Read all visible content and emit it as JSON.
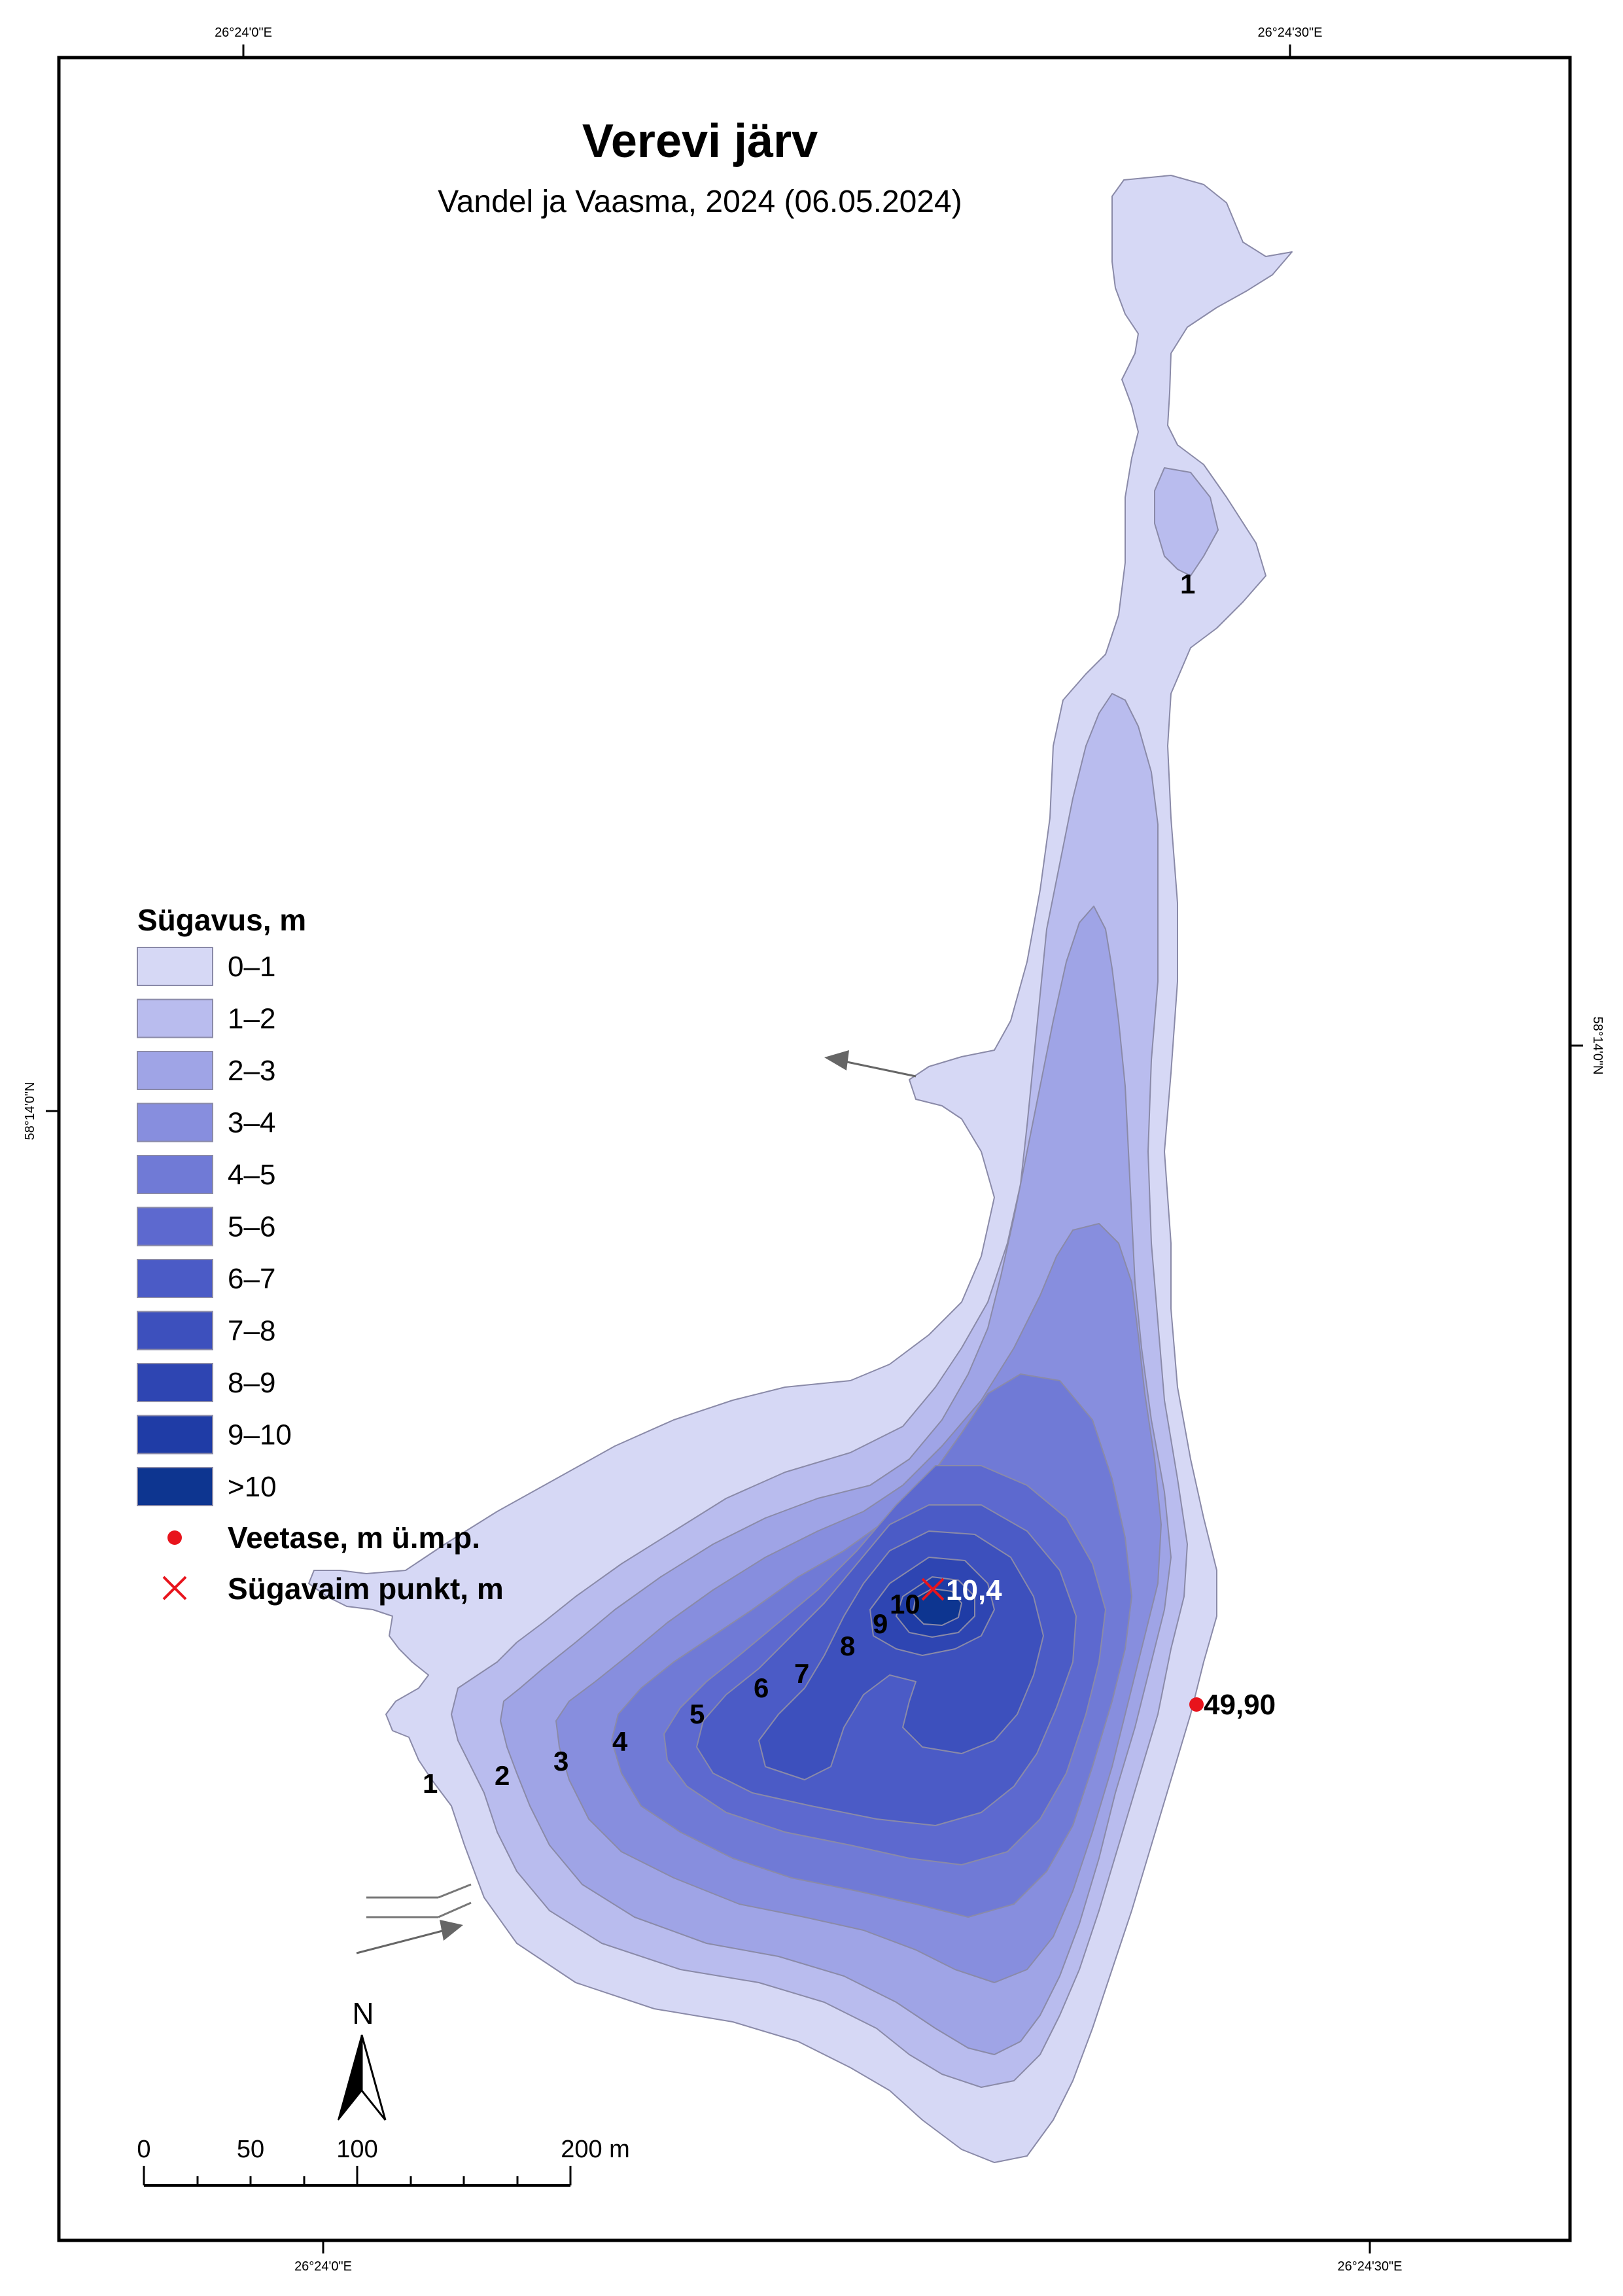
{
  "title": "Verevi järv",
  "subtitle": "Vandel ja Vaasma, 2024 (06.05.2024)",
  "coordinates": {
    "top_left": "26°24'0\"E",
    "top_right": "26°24'30\"E",
    "bottom_left": "26°24'0\"E",
    "bottom_right": "26°24'30\"E",
    "left": "58°14'0\"N",
    "right": "58°14'0\"N"
  },
  "legend": {
    "title": "Sügavus, m",
    "classes": [
      {
        "label": "0–1",
        "color": "#d6d8f5"
      },
      {
        "label": "1–2",
        "color": "#b9bcee"
      },
      {
        "label": "2–3",
        "color": "#9fa4e6"
      },
      {
        "label": "3–4",
        "color": "#878ede"
      },
      {
        "label": "4–5",
        "color": "#707ad6"
      },
      {
        "label": "5–6",
        "color": "#5d69cf"
      },
      {
        "label": "6–7",
        "color": "#4b5bc6"
      },
      {
        "label": "7–8",
        "color": "#3d50bd"
      },
      {
        "label": "8–9",
        "color": "#2e45b2"
      },
      {
        "label": "9–10",
        "color": "#1f3ca6"
      },
      {
        "label": ">10",
        "color": "#0d3590"
      }
    ],
    "symbols": [
      {
        "label": "Veetase, m ü.m.p.",
        "icon": "red-dot-icon",
        "color": "#e8141c"
      },
      {
        "label": "Sügavaim punkt, m",
        "icon": "red-cross-icon",
        "color": "#e8141c"
      }
    ]
  },
  "contour_labels": [
    "1",
    "1",
    "2",
    "3",
    "4",
    "5",
    "6",
    "7",
    "8",
    "9",
    "10"
  ],
  "deepest_point": "10,4",
  "water_level": "49,90",
  "north": "N",
  "scale_bar": {
    "labels": [
      "0",
      "50",
      "100",
      "200 m"
    ]
  }
}
